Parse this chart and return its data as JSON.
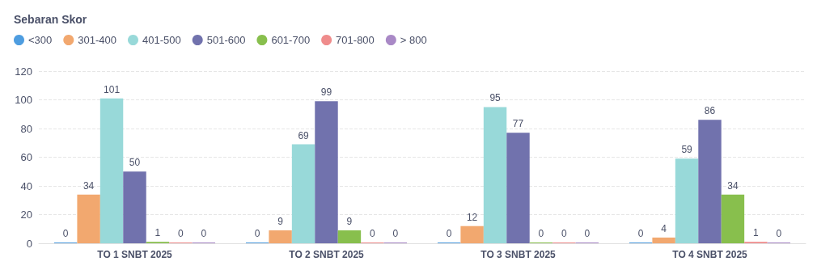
{
  "chart_data": {
    "type": "bar",
    "title": "Sebaran Skor",
    "categories": [
      "TO 1 SNBT 2025",
      "TO 2 SNBT 2025",
      "TO 3 SNBT 2025",
      "TO 4 SNBT 2025"
    ],
    "series": [
      {
        "name": "<300",
        "color": "#4e9de0",
        "values": [
          0,
          0,
          0,
          0
        ]
      },
      {
        "name": "301-400",
        "color": "#f2a86f",
        "values": [
          34,
          9,
          12,
          4
        ]
      },
      {
        "name": "401-500",
        "color": "#98d9d9",
        "values": [
          101,
          69,
          95,
          59
        ]
      },
      {
        "name": "501-600",
        "color": "#7172ad",
        "values": [
          50,
          99,
          77,
          86
        ]
      },
      {
        "name": "601-700",
        "color": "#88bf4d",
        "values": [
          1,
          9,
          0,
          34
        ]
      },
      {
        "name": "701-800",
        "color": "#ef8c8c",
        "values": [
          0,
          0,
          0,
          1
        ]
      },
      {
        "name": "> 800",
        "color": "#a989c6",
        "values": [
          0,
          0,
          0,
          0
        ]
      }
    ],
    "ylim": [
      0,
      120
    ],
    "yticks": [
      0,
      20,
      40,
      60,
      80,
      100,
      120
    ],
    "grid": "y",
    "legend": "top left",
    "data_labels": true
  }
}
